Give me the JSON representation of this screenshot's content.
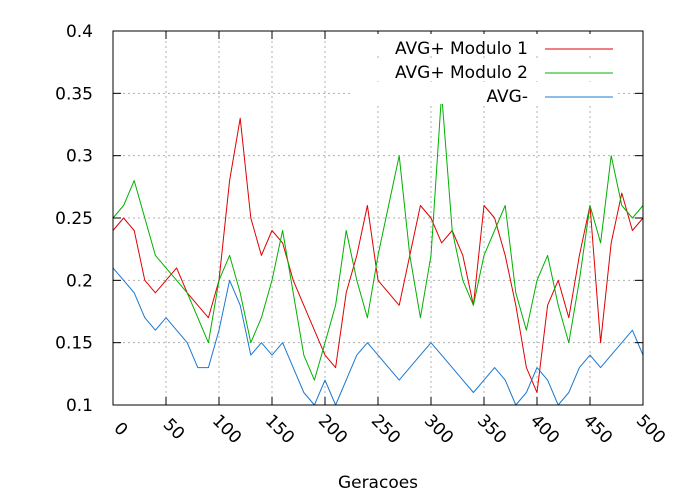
{
  "chart_data": {
    "type": "line",
    "title": "",
    "xlabel": "Geracoes",
    "ylabel": "",
    "xlim": [
      0,
      500
    ],
    "ylim": [
      0.1,
      0.4
    ],
    "grid": true,
    "legend_position": "top-right",
    "x_ticks": [
      "0",
      "50",
      "100",
      "150",
      "200",
      "250",
      "300",
      "350",
      "400",
      "450",
      "500"
    ],
    "y_ticks": [
      "0.1",
      "0.15",
      "0.2",
      "0.25",
      "0.3",
      "0.35",
      "0.4"
    ],
    "x_tick_values": [
      0,
      50,
      100,
      150,
      200,
      250,
      300,
      350,
      400,
      450,
      500
    ],
    "y_tick_values": [
      0.1,
      0.15,
      0.2,
      0.25,
      0.3,
      0.35,
      0.4
    ],
    "series": [
      {
        "name": "AVG+ Modulo 1",
        "color": "#e00000",
        "x": [
          0,
          10,
          20,
          30,
          40,
          50,
          60,
          70,
          80,
          90,
          100,
          110,
          120,
          130,
          140,
          150,
          160,
          170,
          180,
          190,
          200,
          210,
          220,
          230,
          240,
          250,
          260,
          270,
          280,
          290,
          300,
          310,
          320,
          330,
          340,
          350,
          360,
          370,
          380,
          390,
          400,
          410,
          420,
          430,
          440,
          450,
          460,
          470,
          480,
          490,
          500
        ],
        "y": [
          0.24,
          0.25,
          0.24,
          0.2,
          0.19,
          0.2,
          0.21,
          0.19,
          0.18,
          0.17,
          0.2,
          0.28,
          0.33,
          0.25,
          0.22,
          0.24,
          0.23,
          0.2,
          0.18,
          0.16,
          0.14,
          0.13,
          0.19,
          0.22,
          0.26,
          0.2,
          0.19,
          0.18,
          0.22,
          0.26,
          0.25,
          0.23,
          0.24,
          0.22,
          0.18,
          0.26,
          0.25,
          0.22,
          0.18,
          0.13,
          0.11,
          0.18,
          0.2,
          0.17,
          0.22,
          0.26,
          0.15,
          0.23,
          0.27,
          0.24,
          0.25
        ]
      },
      {
        "name": "AVG+ Modulo 2",
        "color": "#00b000",
        "x": [
          0,
          10,
          20,
          30,
          40,
          50,
          60,
          70,
          80,
          90,
          100,
          110,
          120,
          130,
          140,
          150,
          160,
          170,
          180,
          190,
          200,
          210,
          220,
          230,
          240,
          250,
          260,
          270,
          280,
          290,
          300,
          310,
          320,
          330,
          340,
          350,
          360,
          370,
          380,
          390,
          400,
          410,
          420,
          430,
          440,
          450,
          460,
          470,
          480,
          490,
          500
        ],
        "y": [
          0.25,
          0.26,
          0.28,
          0.25,
          0.22,
          0.21,
          0.2,
          0.19,
          0.17,
          0.15,
          0.2,
          0.22,
          0.19,
          0.15,
          0.17,
          0.2,
          0.24,
          0.19,
          0.14,
          0.12,
          0.15,
          0.18,
          0.24,
          0.2,
          0.17,
          0.22,
          0.26,
          0.3,
          0.22,
          0.17,
          0.22,
          0.35,
          0.24,
          0.2,
          0.18,
          0.22,
          0.24,
          0.26,
          0.19,
          0.16,
          0.2,
          0.22,
          0.18,
          0.15,
          0.2,
          0.26,
          0.23,
          0.3,
          0.26,
          0.25,
          0.26
        ]
      },
      {
        "name": "AVG-",
        "color": "#1a78d0",
        "x": [
          0,
          10,
          20,
          30,
          40,
          50,
          60,
          70,
          80,
          90,
          100,
          110,
          120,
          130,
          140,
          150,
          160,
          170,
          180,
          190,
          200,
          210,
          220,
          230,
          240,
          250,
          260,
          270,
          280,
          290,
          300,
          310,
          320,
          330,
          340,
          350,
          360,
          370,
          380,
          390,
          400,
          410,
          420,
          430,
          440,
          450,
          460,
          470,
          480,
          490,
          500
        ],
        "y": [
          0.21,
          0.2,
          0.19,
          0.17,
          0.16,
          0.17,
          0.16,
          0.15,
          0.13,
          0.13,
          0.16,
          0.2,
          0.18,
          0.14,
          0.15,
          0.14,
          0.15,
          0.13,
          0.11,
          0.1,
          0.12,
          0.1,
          0.12,
          0.14,
          0.15,
          0.14,
          0.13,
          0.12,
          0.13,
          0.14,
          0.15,
          0.14,
          0.13,
          0.12,
          0.11,
          0.12,
          0.13,
          0.12,
          0.1,
          0.11,
          0.13,
          0.12,
          0.1,
          0.11,
          0.13,
          0.14,
          0.13,
          0.14,
          0.15,
          0.16,
          0.14
        ]
      }
    ]
  }
}
